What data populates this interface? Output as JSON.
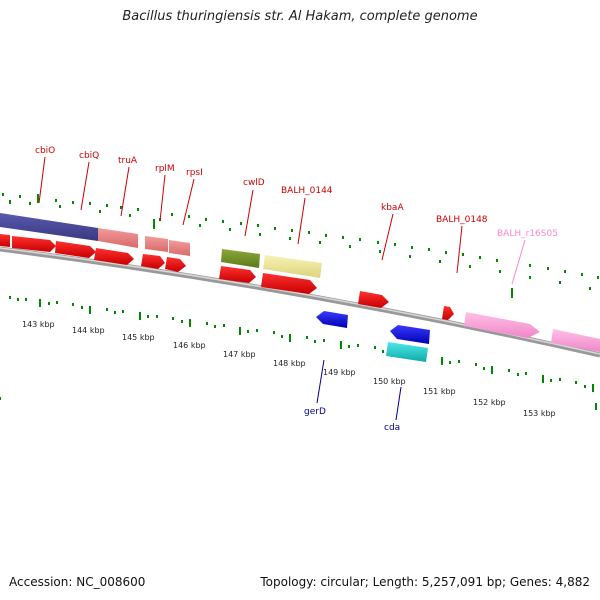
{
  "title": "Bacillus thuringiensis str. Al Hakam, complete genome",
  "accession": "Accession: NC_008600",
  "summary": "Topology: circular; Length: 5,257,091 bp; Genes: 4,882",
  "colors": {
    "forward_label": "#cc0000",
    "reverse_label": "#000099",
    "rna_label": "#ff88cc",
    "tick": "#007700",
    "backbone": "#888888"
  },
  "ruler_labels": [
    "143 kbp",
    "144 kbp",
    "145 kbp",
    "146 kbp",
    "147 kbp",
    "148 kbp",
    "149 kbp",
    "150 kbp",
    "151 kbp",
    "152 kbp",
    "153 kbp"
  ],
  "gene_labels": {
    "forward": [
      "cbiO",
      "cbiQ",
      "truA",
      "rplM",
      "rpsI",
      "cwlD",
      "BALH_0144",
      "kbaA",
      "BALH_0148"
    ],
    "rna": [
      "BALH_r16S05"
    ],
    "reverse": [
      "gerD",
      "cda"
    ]
  }
}
